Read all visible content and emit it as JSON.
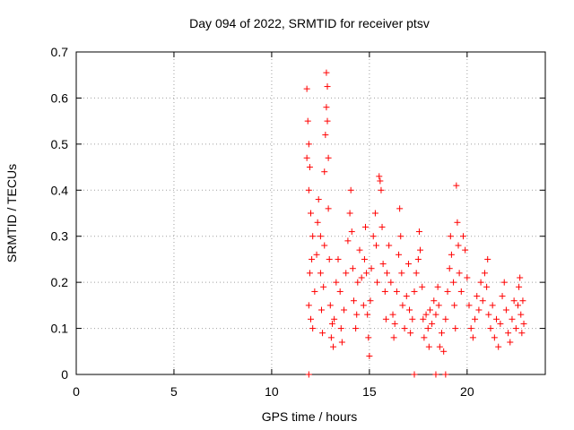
{
  "chart_data": {
    "type": "scatter",
    "title": "Day 094 of 2022, SRMTID for receiver ptsv",
    "xlabel": "GPS time / hours",
    "ylabel": "SRMTID / TECUs",
    "xlim": [
      0,
      24
    ],
    "ylim": [
      0,
      0.7
    ],
    "xticks": [
      0,
      5,
      10,
      15,
      20
    ],
    "yticks": [
      0,
      0.1,
      0.2,
      0.3,
      0.4,
      0.5,
      0.6,
      0.7
    ],
    "xtick_labels": [
      "0",
      "5",
      "10",
      "15",
      "20"
    ],
    "ytick_labels": [
      "0",
      "0.1",
      "0.2",
      "0.3",
      "0.4",
      "0.5",
      "0.6",
      "0.7"
    ],
    "grid": true,
    "marker": "+",
    "color": "#ff0000",
    "series": [
      {
        "name": "SRMTID",
        "points": [
          [
            11.8,
            0.62
          ],
          [
            11.85,
            0.55
          ],
          [
            11.9,
            0.5
          ],
          [
            11.95,
            0.45
          ],
          [
            11.8,
            0.47
          ],
          [
            11.9,
            0.4
          ],
          [
            12.0,
            0.35
          ],
          [
            12.1,
            0.3
          ],
          [
            12.05,
            0.25
          ],
          [
            11.95,
            0.22
          ],
          [
            11.9,
            0.15
          ],
          [
            12.0,
            0.12
          ],
          [
            12.1,
            0.1
          ],
          [
            12.2,
            0.18
          ],
          [
            12.3,
            0.26
          ],
          [
            12.35,
            0.33
          ],
          [
            12.4,
            0.38
          ],
          [
            12.5,
            0.3
          ],
          [
            12.5,
            0.22
          ],
          [
            12.55,
            0.14
          ],
          [
            12.6,
            0.09
          ],
          [
            12.65,
            0.19
          ],
          [
            12.7,
            0.28
          ],
          [
            12.7,
            0.44
          ],
          [
            12.75,
            0.52
          ],
          [
            12.8,
            0.58
          ],
          [
            12.8,
            0.655
          ],
          [
            12.85,
            0.625
          ],
          [
            12.85,
            0.55
          ],
          [
            12.9,
            0.47
          ],
          [
            12.9,
            0.36
          ],
          [
            12.95,
            0.25
          ],
          [
            13.0,
            0.15
          ],
          [
            13.05,
            0.08
          ],
          [
            13.1,
            0.11
          ],
          [
            13.15,
            0.06
          ],
          [
            13.2,
            0.12
          ],
          [
            13.3,
            0.2
          ],
          [
            13.4,
            0.25
          ],
          [
            13.5,
            0.18
          ],
          [
            13.55,
            0.1
          ],
          [
            13.6,
            0.07
          ],
          [
            13.7,
            0.14
          ],
          [
            13.8,
            0.22
          ],
          [
            13.9,
            0.29
          ],
          [
            14.0,
            0.35
          ],
          [
            14.05,
            0.4
          ],
          [
            14.1,
            0.31
          ],
          [
            14.15,
            0.23
          ],
          [
            14.2,
            0.16
          ],
          [
            14.3,
            0.1
          ],
          [
            14.35,
            0.13
          ],
          [
            14.4,
            0.2
          ],
          [
            14.5,
            0.27
          ],
          [
            14.6,
            0.21
          ],
          [
            14.7,
            0.15
          ],
          [
            14.75,
            0.25
          ],
          [
            14.8,
            0.32
          ],
          [
            14.85,
            0.22
          ],
          [
            14.9,
            0.13
          ],
          [
            14.95,
            0.08
          ],
          [
            15.0,
            0.04
          ],
          [
            15.05,
            0.16
          ],
          [
            15.1,
            0.23
          ],
          [
            15.2,
            0.3
          ],
          [
            15.3,
            0.35
          ],
          [
            15.35,
            0.28
          ],
          [
            15.4,
            0.2
          ],
          [
            15.5,
            0.43
          ],
          [
            15.55,
            0.42
          ],
          [
            15.6,
            0.4
          ],
          [
            15.65,
            0.32
          ],
          [
            15.7,
            0.24
          ],
          [
            15.8,
            0.18
          ],
          [
            15.85,
            0.12
          ],
          [
            15.9,
            0.22
          ],
          [
            16.0,
            0.28
          ],
          [
            16.1,
            0.2
          ],
          [
            16.2,
            0.13
          ],
          [
            16.25,
            0.08
          ],
          [
            16.3,
            0.11
          ],
          [
            16.4,
            0.18
          ],
          [
            16.5,
            0.26
          ],
          [
            16.55,
            0.36
          ],
          [
            16.6,
            0.3
          ],
          [
            16.65,
            0.22
          ],
          [
            16.7,
            0.15
          ],
          [
            16.8,
            0.1
          ],
          [
            16.9,
            0.17
          ],
          [
            17.0,
            0.24
          ],
          [
            17.05,
            0.14
          ],
          [
            17.1,
            0.09
          ],
          [
            17.2,
            0.12
          ],
          [
            17.3,
            0.18
          ],
          [
            17.4,
            0.22
          ],
          [
            17.5,
            0.25
          ],
          [
            17.55,
            0.31
          ],
          [
            17.6,
            0.27
          ],
          [
            17.7,
            0.19
          ],
          [
            17.75,
            0.12
          ],
          [
            17.8,
            0.08
          ],
          [
            17.9,
            0.13
          ],
          [
            18.0,
            0.1
          ],
          [
            18.05,
            0.06
          ],
          [
            18.1,
            0.14
          ],
          [
            18.2,
            0.11
          ],
          [
            18.3,
            0.16
          ],
          [
            18.4,
            0.13
          ],
          [
            18.5,
            0.19
          ],
          [
            18.55,
            0.15
          ],
          [
            18.6,
            0.06
          ],
          [
            18.7,
            0.09
          ],
          [
            18.8,
            0.05
          ],
          [
            18.9,
            0.12
          ],
          [
            19.0,
            0.18
          ],
          [
            19.1,
            0.23
          ],
          [
            19.15,
            0.3
          ],
          [
            19.2,
            0.26
          ],
          [
            19.3,
            0.2
          ],
          [
            19.35,
            0.15
          ],
          [
            19.4,
            0.1
          ],
          [
            19.45,
            0.41
          ],
          [
            19.5,
            0.33
          ],
          [
            19.55,
            0.28
          ],
          [
            19.6,
            0.22
          ],
          [
            19.7,
            0.18
          ],
          [
            19.8,
            0.3
          ],
          [
            19.9,
            0.27
          ],
          [
            20.0,
            0.21
          ],
          [
            20.1,
            0.15
          ],
          [
            20.2,
            0.1
          ],
          [
            20.3,
            0.08
          ],
          [
            20.4,
            0.12
          ],
          [
            20.5,
            0.17
          ],
          [
            20.6,
            0.14
          ],
          [
            20.7,
            0.2
          ],
          [
            20.8,
            0.16
          ],
          [
            20.9,
            0.22
          ],
          [
            21.0,
            0.19
          ],
          [
            21.05,
            0.25
          ],
          [
            21.1,
            0.13
          ],
          [
            21.2,
            0.1
          ],
          [
            21.3,
            0.15
          ],
          [
            21.4,
            0.08
          ],
          [
            21.5,
            0.12
          ],
          [
            21.6,
            0.06
          ],
          [
            21.7,
            0.11
          ],
          [
            21.8,
            0.17
          ],
          [
            21.9,
            0.2
          ],
          [
            22.0,
            0.14
          ],
          [
            22.1,
            0.09
          ],
          [
            22.2,
            0.07
          ],
          [
            22.3,
            0.12
          ],
          [
            22.4,
            0.16
          ],
          [
            22.5,
            0.1
          ],
          [
            22.6,
            0.15
          ],
          [
            22.65,
            0.19
          ],
          [
            22.7,
            0.21
          ],
          [
            22.75,
            0.13
          ],
          [
            22.8,
            0.09
          ],
          [
            22.85,
            0.16
          ],
          [
            22.9,
            0.11
          ],
          [
            11.9,
            0.0
          ],
          [
            17.3,
            0.0
          ],
          [
            18.4,
            0.0
          ],
          [
            18.9,
            0.0
          ]
        ]
      }
    ]
  }
}
